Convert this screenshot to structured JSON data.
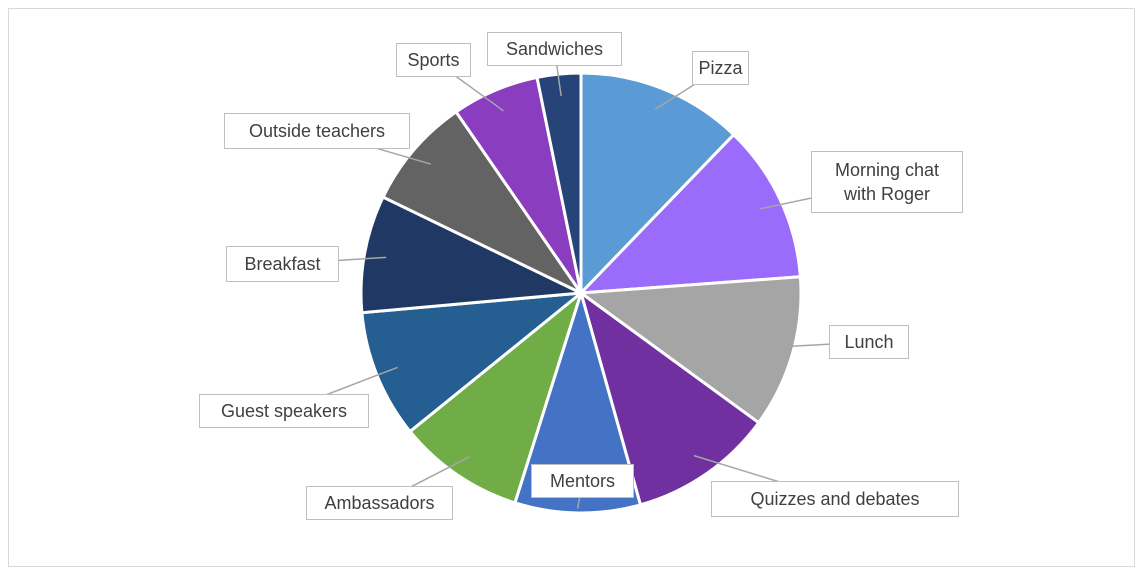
{
  "chart_data": {
    "type": "pie",
    "categories": [
      "Pizza",
      "Morning chat with Roger",
      "Lunch",
      "Quizzes and debates",
      "Mentors",
      "Ambassadors",
      "Guest speakers",
      "Breakfast",
      "Outside teachers",
      "Sports",
      "Sandwiches"
    ],
    "values": [
      12.2,
      11.6,
      11.2,
      10.6,
      9.2,
      9.3,
      9.4,
      8.6,
      8.2,
      6.4,
      3.2
    ],
    "colors": [
      "#5b9bd5",
      "#9b6bfb",
      "#a5a5a5",
      "#7030a0",
      "#4472c4",
      "#70ad47",
      "#255e91",
      "#203864",
      "#636363",
      "#8b3dbf",
      "#264478"
    ]
  }
}
